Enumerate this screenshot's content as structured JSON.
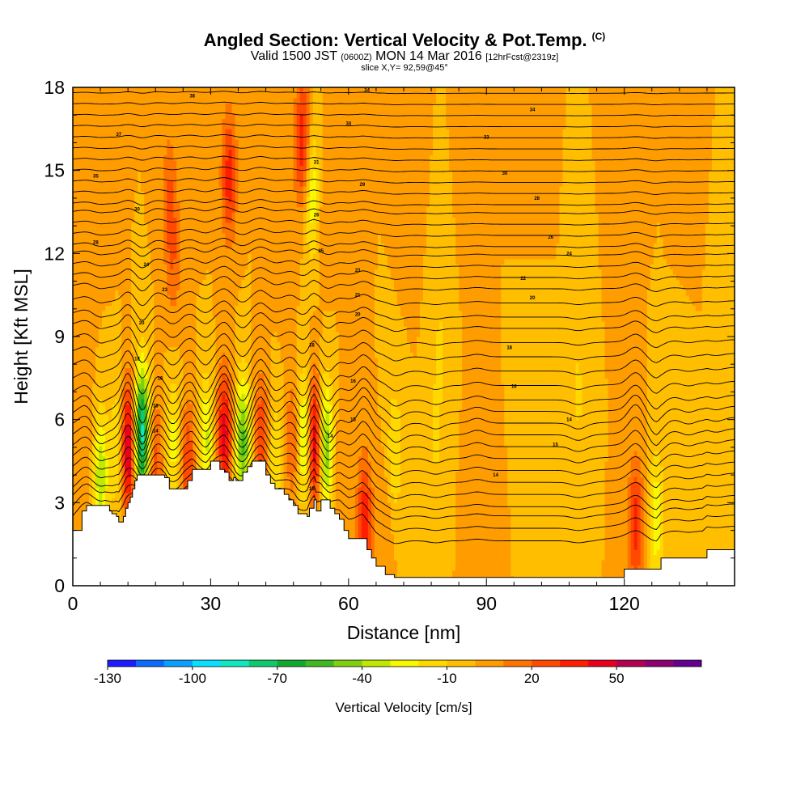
{
  "title": {
    "main": "Angled Section: Vertical Velocity & Pot.Temp.",
    "main_unit": "(C)",
    "valid_prefix": "Valid 1500 JST",
    "valid_utc": "(0600Z)",
    "valid_date": "MON 14 Mar 2016",
    "forecast": "[12hrFcst@2319z]",
    "slice": "slice X,Y= 92,59@45°"
  },
  "chart_data": {
    "type": "heatmap",
    "xlabel": "Distance [nm]",
    "ylabel": "Height [Kft MSL]",
    "xlim": [
      0,
      144
    ],
    "ylim": [
      0,
      18
    ],
    "x_ticks": [
      0,
      30,
      60,
      90,
      120
    ],
    "y_ticks": [
      0,
      3,
      6,
      9,
      12,
      15,
      18
    ],
    "colorbar": {
      "label": "Vertical Velocity [cm/s]",
      "tick_values": [
        -130,
        -100,
        -70,
        -40,
        -10,
        20,
        50
      ],
      "levels": [
        -130,
        -120,
        -110,
        -100,
        -90,
        -80,
        -70,
        -60,
        -50,
        -40,
        -30,
        -20,
        -10,
        0,
        10,
        20,
        30,
        40,
        50,
        60,
        70
      ],
      "colors": [
        "#1c1cff",
        "#0a6cff",
        "#0aa0ff",
        "#08e0ff",
        "#10e8c0",
        "#10c870",
        "#10a830",
        "#40b820",
        "#80d010",
        "#c0e800",
        "#f8f800",
        "#ffd800",
        "#ffbe00",
        "#ff9c00",
        "#ff7400",
        "#ff4a00",
        "#ff1e00",
        "#e8001e",
        "#b40050",
        "#8c0070",
        "#640090"
      ]
    },
    "background_velocity": 0,
    "velocity_features": [
      {
        "x": 3,
        "y": 10.3,
        "value": 6
      },
      {
        "x": 8,
        "y": 15.5,
        "value": 10
      },
      {
        "x": 21,
        "y": 14,
        "value": 20
      },
      {
        "x": 22,
        "y": 11.7,
        "value": 15
      },
      {
        "x": 27,
        "y": 16,
        "value": 10
      },
      {
        "x": 34,
        "y": 14.8,
        "value": 35
      },
      {
        "x": 46,
        "y": 12.5,
        "value": 10
      },
      {
        "x": 50,
        "y": 16,
        "value": 40
      },
      {
        "x": 52,
        "y": 14.3,
        "value": -30
      },
      {
        "x": 55,
        "y": 14,
        "value": 10
      },
      {
        "x": 60,
        "y": 12.5,
        "value": 10
      },
      {
        "x": 73,
        "y": 14.5,
        "value": 10
      },
      {
        "x": 87,
        "y": 15,
        "value": 10
      },
      {
        "x": 100,
        "y": 13.5,
        "value": 6
      },
      {
        "x": 120,
        "y": 14.2,
        "value": 10
      },
      {
        "x": 135,
        "y": 13.8,
        "value": 8
      },
      {
        "x": 140,
        "y": 10,
        "value": -8
      },
      {
        "x": 3,
        "y": 5.5,
        "value": 10
      },
      {
        "x": 6,
        "y": 4,
        "value": -38
      },
      {
        "x": 10,
        "y": 5,
        "value": -25
      },
      {
        "x": 12,
        "y": 5,
        "value": 60
      },
      {
        "x": 15,
        "y": 5.5,
        "value": -85
      },
      {
        "x": 18,
        "y": 4.5,
        "value": 25
      },
      {
        "x": 22,
        "y": 5.2,
        "value": -25
      },
      {
        "x": 25,
        "y": 4.4,
        "value": 30
      },
      {
        "x": 29,
        "y": 5.2,
        "value": -32
      },
      {
        "x": 33,
        "y": 5.5,
        "value": 45
      },
      {
        "x": 37,
        "y": 5.2,
        "value": -52
      },
      {
        "x": 41,
        "y": 5.3,
        "value": 30
      },
      {
        "x": 44,
        "y": 4.5,
        "value": -20
      },
      {
        "x": 48,
        "y": 5.2,
        "value": 22
      },
      {
        "x": 50.5,
        "y": 5.3,
        "value": -45
      },
      {
        "x": 52.5,
        "y": 5.2,
        "value": 60
      },
      {
        "x": 55,
        "y": 5,
        "value": -50
      },
      {
        "x": 58,
        "y": 4,
        "value": 10
      },
      {
        "x": 63.5,
        "y": 2.2,
        "value": 40
      },
      {
        "x": 68,
        "y": 2,
        "value": 10
      },
      {
        "x": 70,
        "y": 4.8,
        "value": -20
      },
      {
        "x": 79,
        "y": 5.5,
        "value": -12
      },
      {
        "x": 88,
        "y": 2.2,
        "value": 10
      },
      {
        "x": 110,
        "y": 7,
        "value": -12
      },
      {
        "x": 122.5,
        "y": 2.2,
        "value": 35
      },
      {
        "x": 127,
        "y": 2.5,
        "value": -28
      },
      {
        "x": 134,
        "y": 6.5,
        "value": -10
      },
      {
        "x": 140,
        "y": 4,
        "value": -8
      },
      {
        "x": 100,
        "y": 9.5,
        "value": -10
      },
      {
        "x": 80,
        "y": 9,
        "value": -10
      }
    ],
    "terrain": {
      "x": [
        0,
        2,
        3,
        7,
        8,
        8.5,
        9.5,
        10,
        11,
        11.5,
        12,
        12.5,
        13,
        13.5,
        14,
        15,
        19,
        20,
        21,
        23,
        25,
        26,
        27,
        29,
        30,
        31,
        32,
        33,
        34,
        35,
        35.5,
        37,
        38,
        39,
        41,
        42,
        43,
        44,
        45,
        46,
        47,
        48,
        49,
        50,
        51,
        51.5,
        52.5,
        53,
        54,
        55,
        56,
        57,
        58,
        59,
        60,
        61,
        62,
        63,
        64,
        65,
        66,
        68,
        70,
        75,
        90,
        100,
        112,
        113,
        120,
        127,
        128,
        137,
        138,
        144
      ],
      "y": [
        2.0,
        2.7,
        2.9,
        2.9,
        2.7,
        2.6,
        2.5,
        2.3,
        2.5,
        2.8,
        3.0,
        3.2,
        3.5,
        3.8,
        4.0,
        4.0,
        4.0,
        3.9,
        3.5,
        3.5,
        3.8,
        4.2,
        4.2,
        4.2,
        4.5,
        4.5,
        4.2,
        4.1,
        3.8,
        3.9,
        3.8,
        4.1,
        4.3,
        4.5,
        4.5,
        4.0,
        3.7,
        3.5,
        3.5,
        3.3,
        3.1,
        2.9,
        2.6,
        2.6,
        2.5,
        2.8,
        3.1,
        2.7,
        3.1,
        3.1,
        2.8,
        2.6,
        2.4,
        2.0,
        1.7,
        1.7,
        1.7,
        1.7,
        1.3,
        1.0,
        0.7,
        0.4,
        0.3,
        0.3,
        0.3,
        0.3,
        0.3,
        0.3,
        0.6,
        0.6,
        1.0,
        1.0,
        1.3,
        1.3
      ]
    },
    "contours": {
      "label": "Pot.Temp. (C)",
      "levels": [
        14,
        15,
        16,
        17,
        18,
        19,
        20,
        21,
        22,
        23,
        24,
        25,
        26,
        27,
        28,
        29,
        30,
        31,
        32,
        33,
        34,
        35,
        36,
        37,
        38,
        39,
        40,
        41,
        42,
        43,
        44,
        45,
        46,
        47,
        48,
        49,
        50,
        51,
        52,
        53
      ],
      "base_heights": [
        2.2,
        2.6,
        3.0,
        3.3,
        3.7,
        4.1,
        4.5,
        4.9,
        5.3,
        5.7,
        6.1,
        6.5,
        6.9,
        7.4,
        7.9,
        8.4,
        8.9,
        9.4,
        9.8,
        10.3,
        10.8,
        11.2,
        11.6,
        12.0,
        12.3,
        12.7,
        13.1,
        13.5,
        13.8,
        14.2,
        14.6,
        15.0,
        15.4,
        15.8,
        16.2,
        16.6,
        17.0,
        17.4,
        17.8,
        18.2
      ]
    },
    "contour_labels": [
      {
        "x": 26,
        "y": 17.7,
        "text": "38"
      },
      {
        "x": 64,
        "y": 17.9,
        "text": "34"
      },
      {
        "x": 100,
        "y": 17.2,
        "text": "34"
      },
      {
        "x": 60,
        "y": 16.7,
        "text": "34"
      },
      {
        "x": 90,
        "y": 16.2,
        "text": "33"
      },
      {
        "x": 10,
        "y": 16.3,
        "text": "37"
      },
      {
        "x": 5,
        "y": 14.8,
        "text": "35"
      },
      {
        "x": 53,
        "y": 15.3,
        "text": "31"
      },
      {
        "x": 94,
        "y": 14.9,
        "text": "30"
      },
      {
        "x": 63,
        "y": 14.5,
        "text": "29"
      },
      {
        "x": 101,
        "y": 14.0,
        "text": "28"
      },
      {
        "x": 14,
        "y": 13.6,
        "text": "30"
      },
      {
        "x": 104,
        "y": 12.6,
        "text": "26"
      },
      {
        "x": 5,
        "y": 12.4,
        "text": "28"
      },
      {
        "x": 53,
        "y": 13.4,
        "text": "26"
      },
      {
        "x": 54,
        "y": 12.1,
        "text": "25"
      },
      {
        "x": 108,
        "y": 12.0,
        "text": "24"
      },
      {
        "x": 16,
        "y": 11.6,
        "text": "24"
      },
      {
        "x": 62,
        "y": 11.4,
        "text": "23"
      },
      {
        "x": 98,
        "y": 11.1,
        "text": "22"
      },
      {
        "x": 20,
        "y": 10.7,
        "text": "23"
      },
      {
        "x": 62,
        "y": 10.5,
        "text": "21"
      },
      {
        "x": 100,
        "y": 10.4,
        "text": "20"
      },
      {
        "x": 62,
        "y": 9.8,
        "text": "20"
      },
      {
        "x": 15,
        "y": 9.5,
        "text": "20"
      },
      {
        "x": 52,
        "y": 8.7,
        "text": "18"
      },
      {
        "x": 95,
        "y": 8.6,
        "text": "18"
      },
      {
        "x": 14,
        "y": 8.2,
        "text": "18"
      },
      {
        "x": 19,
        "y": 7.5,
        "text": "16"
      },
      {
        "x": 61,
        "y": 7.4,
        "text": "16"
      },
      {
        "x": 96,
        "y": 7.2,
        "text": "16"
      },
      {
        "x": 18,
        "y": 6.5,
        "text": "15"
      },
      {
        "x": 61,
        "y": 6.0,
        "text": "15"
      },
      {
        "x": 108,
        "y": 6.0,
        "text": "14"
      },
      {
        "x": 18,
        "y": 5.6,
        "text": "14"
      },
      {
        "x": 56,
        "y": 5.4,
        "text": "14"
      },
      {
        "x": 105,
        "y": 5.1,
        "text": "15"
      },
      {
        "x": 92,
        "y": 4.0,
        "text": "14"
      },
      {
        "x": 52,
        "y": 3.5,
        "text": "15"
      }
    ]
  }
}
